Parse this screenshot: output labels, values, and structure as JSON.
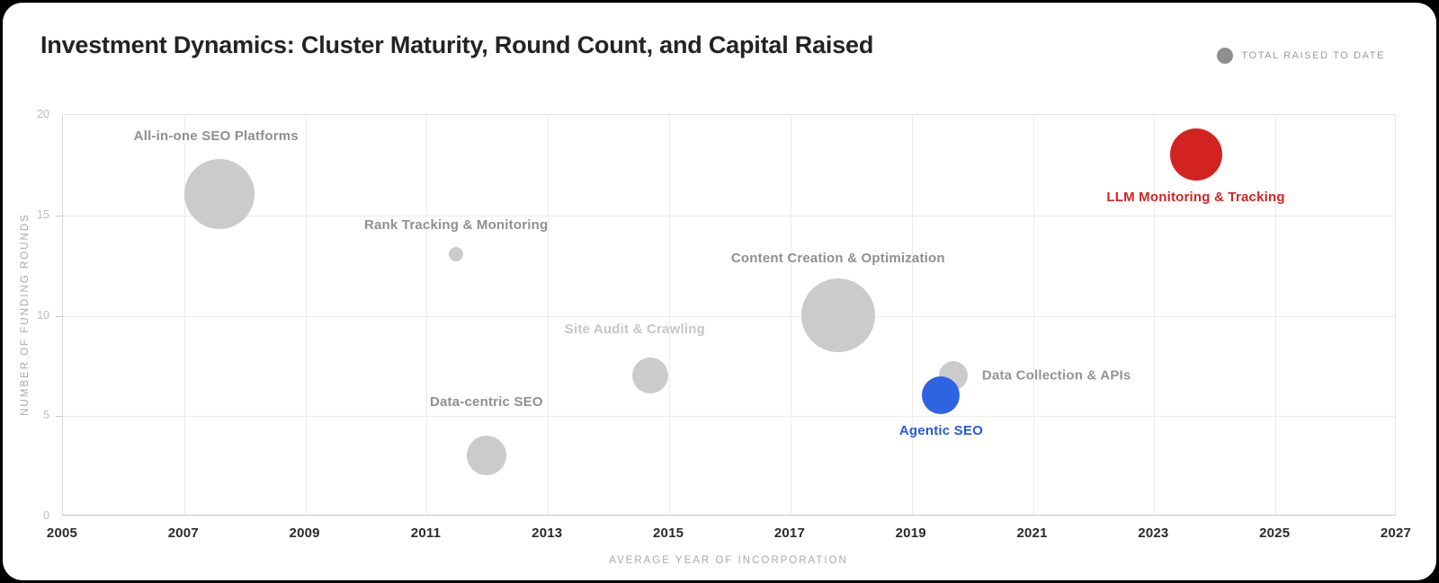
{
  "page": {
    "background": "#000000",
    "card_background": "#ffffff"
  },
  "header": {
    "title": "Investment Dynamics: Cluster Maturity, Round Count, and Capital Raised",
    "legend": {
      "label": "TOTAL RAISED TO DATE",
      "swatch_color": "#8f8f8f"
    }
  },
  "chart_data": {
    "type": "scatter",
    "subtype": "bubble",
    "title": "Investment Dynamics: Cluster Maturity, Round Count, and Capital Raised",
    "xlabel": "AVERAGE YEAR OF INCORPORATION",
    "ylabel": "NUMBER OF FUNDING ROUNDS",
    "xlim": [
      2005,
      2027
    ],
    "ylim": [
      0,
      20
    ],
    "x_ticks": [
      2005,
      2007,
      2009,
      2011,
      2013,
      2015,
      2017,
      2019,
      2021,
      2023,
      2025,
      2027
    ],
    "y_ticks": [
      0,
      5,
      10,
      15,
      20
    ],
    "grid": true,
    "legend": {
      "entries": [
        "TOTAL RAISED TO DATE"
      ],
      "position": "top-right"
    },
    "size_note": "Bubble size encodes total raised to date; amounts are not labeled on the chart",
    "points": [
      {
        "label": "All-in-one SEO Platforms",
        "x": 2007.6,
        "y": 16,
        "r": 39,
        "color": "#cbcbcb",
        "label_color": "#8f8f8f",
        "label_pos": "above",
        "label_offset": [
          -4,
          -5
        ],
        "highlight": false
      },
      {
        "label": "Rank Tracking & Monitoring",
        "x": 2011.5,
        "y": 13,
        "r": 8,
        "color": "#cbcbcb",
        "label_color": "#8f8f8f",
        "label_pos": "above",
        "label_offset": [
          0,
          -4
        ],
        "highlight": false
      },
      {
        "label": "Data-centric SEO",
        "x": 2012.0,
        "y": 3,
        "r": 22,
        "color": "#cbcbcb",
        "label_color": "#8f8f8f",
        "label_pos": "above",
        "label_offset": [
          0,
          -17
        ],
        "highlight": false
      },
      {
        "label": "Site Audit & Crawling",
        "x": 2014.7,
        "y": 7,
        "r": 20,
        "color": "#cbcbcb",
        "label_color": "#c6c6c6",
        "label_pos": "above",
        "label_offset": [
          -17,
          -11
        ],
        "highlight": false
      },
      {
        "label": "Content Creation & Optimization",
        "x": 2017.8,
        "y": 10,
        "r": 41,
        "color": "#cbcbcb",
        "label_color": "#8f8f8f",
        "label_pos": "above",
        "label_offset": [
          0,
          -2
        ],
        "highlight": false
      },
      {
        "label": "Data Collection & APIs",
        "x": 2019.7,
        "y": 7,
        "r": 16,
        "color": "#cbcbcb",
        "label_color": "#949494",
        "label_pos": "right",
        "label_offset": [
          0,
          0
        ],
        "highlight": false
      },
      {
        "label": "Agentic SEO",
        "x": 2019.5,
        "y": 6,
        "r": 21,
        "color": "#2d64e2",
        "label_color": "#2458e4",
        "label_pos": "below",
        "label_offset": [
          0,
          2
        ],
        "highlight": true
      },
      {
        "label": "LLM Monitoring & Tracking",
        "x": 2023.7,
        "y": 18,
        "r": 29,
        "color": "#d32320",
        "label_color": "#d32320",
        "label_pos": "below",
        "label_offset": [
          0,
          2
        ],
        "highlight": true
      }
    ]
  }
}
